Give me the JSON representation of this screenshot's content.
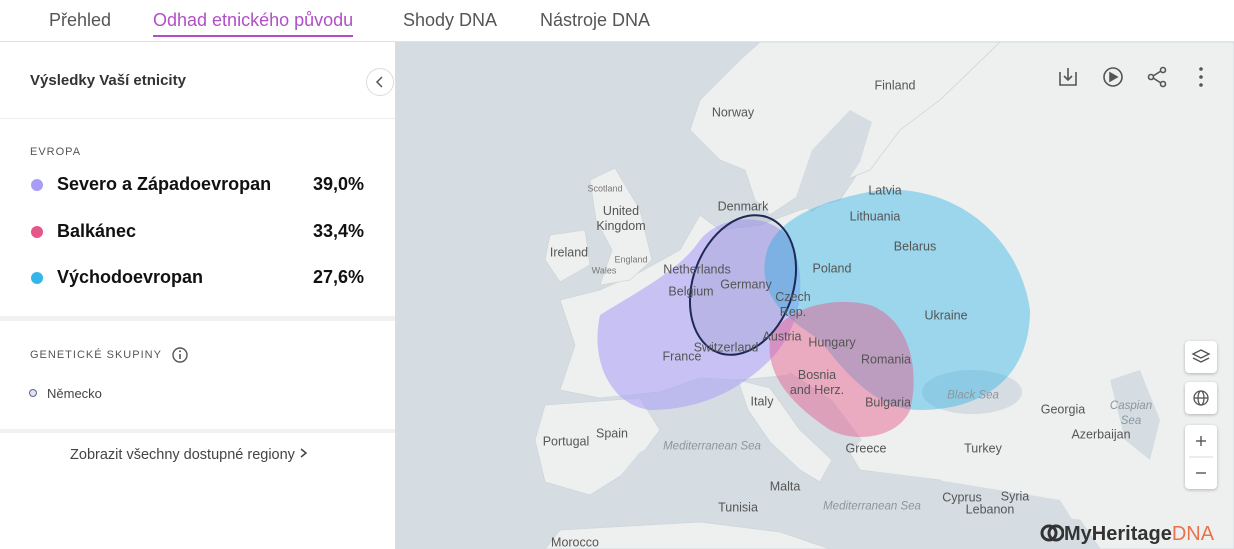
{
  "nav": {
    "tabs": [
      "Přehled",
      "Odhad etnického původu",
      "Shody DNA",
      "Nástroje DNA"
    ],
    "active": 1
  },
  "panel": {
    "title": "Výsledky Vaší etnicity",
    "section": "EVROPA",
    "ethnicities": [
      {
        "name": "Severo a Západoevropan",
        "percent": "39,0%",
        "color": "#a99cf8"
      },
      {
        "name": "Balkánec",
        "percent": "33,4%",
        "color": "#e5578a"
      },
      {
        "name": "Východoevropan",
        "percent": "27,6%",
        "color": "#35b6e9"
      }
    ],
    "groups_title": "GENETICKÉ SKUPINY",
    "groups": [
      "Německo"
    ],
    "show_all": "Zobrazit všechny dostupné regiony"
  },
  "map": {
    "labels": [
      "Finland",
      "Norway",
      "Latvia",
      "Denmark",
      "Lithuania",
      "Scotland",
      "United Kingdom",
      "Ireland",
      "England",
      "Wales",
      "Netherlands",
      "Belarus",
      "Poland",
      "Germany",
      "Belgium",
      "Czech Rep.",
      "Ukraine",
      "Austria",
      "Hungary",
      "Switzerland",
      "France",
      "Romania",
      "Bosnia and Herz.",
      "Black Sea",
      "Bulgaria",
      "Italy",
      "Georgia",
      "Caspian Sea",
      "Azerbaijan",
      "Spain",
      "Portugal",
      "Mediterranean Sea",
      "Greece",
      "Turkey",
      "Malta",
      "Cyprus",
      "Syria",
      "Tunisia",
      "Mediterranean Sea",
      "Lebanon",
      "Morocco"
    ],
    "logo": "MyHeritage",
    "logo_dna": "DNA"
  }
}
